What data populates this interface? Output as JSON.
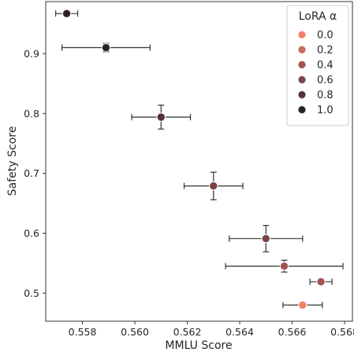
{
  "chart_data": {
    "type": "scatter",
    "xlabel": "MMLU Score",
    "ylabel": "Safety Score",
    "xlim": [
      0.5566,
      0.5683
    ],
    "ylim": [
      0.453,
      0.987
    ],
    "x_ticks": [
      0.558,
      0.56,
      0.562,
      0.564,
      0.566,
      0.568
    ],
    "x_tick_labels": [
      "0.558",
      "0.560",
      "0.562",
      "0.564",
      "0.566",
      "0.568"
    ],
    "y_ticks": [
      0.5,
      0.6,
      0.7,
      0.8,
      0.9
    ],
    "y_tick_labels": [
      "0.5",
      "0.6",
      "0.7",
      "0.8",
      "0.9"
    ],
    "grid": false,
    "legend": {
      "title": "LoRA α",
      "placement": "top-right",
      "entries": [
        {
          "label": "0.0",
          "color": "#f47f66"
        },
        {
          "label": "0.2",
          "color": "#c86a5c"
        },
        {
          "label": "0.4",
          "color": "#a05451"
        },
        {
          "label": "0.6",
          "color": "#7b4445"
        },
        {
          "label": "0.8",
          "color": "#553436"
        },
        {
          "label": "1.0",
          "color": "#2e2324"
        }
      ]
    },
    "points": [
      {
        "x": 0.5574,
        "y": 0.967,
        "xerr": 0.00042,
        "yerr": 0.0,
        "color": "#2e2324"
      },
      {
        "x": 0.5589,
        "y": 0.91,
        "xerr": 0.00168,
        "yerr": 0.007,
        "color": "#2e2324"
      },
      {
        "x": 0.561,
        "y": 0.794,
        "xerr": 0.00112,
        "yerr": 0.02,
        "color": "#553436"
      },
      {
        "x": 0.563,
        "y": 0.679,
        "xerr": 0.00112,
        "yerr": 0.023,
        "color": "#7b4445"
      },
      {
        "x": 0.565,
        "y": 0.591,
        "xerr": 0.0014,
        "yerr": 0.022,
        "color": "#7b4445"
      },
      {
        "x": 0.5657,
        "y": 0.545,
        "xerr": 0.00224,
        "yerr": 0.01,
        "color": "#a05451"
      },
      {
        "x": 0.5671,
        "y": 0.519,
        "xerr": 0.00042,
        "yerr": 0.004,
        "color": "#a05451"
      },
      {
        "x": 0.5664,
        "y": 0.48,
        "xerr": 0.00075,
        "yerr": 0.0,
        "color": "#f47f66"
      }
    ]
  }
}
